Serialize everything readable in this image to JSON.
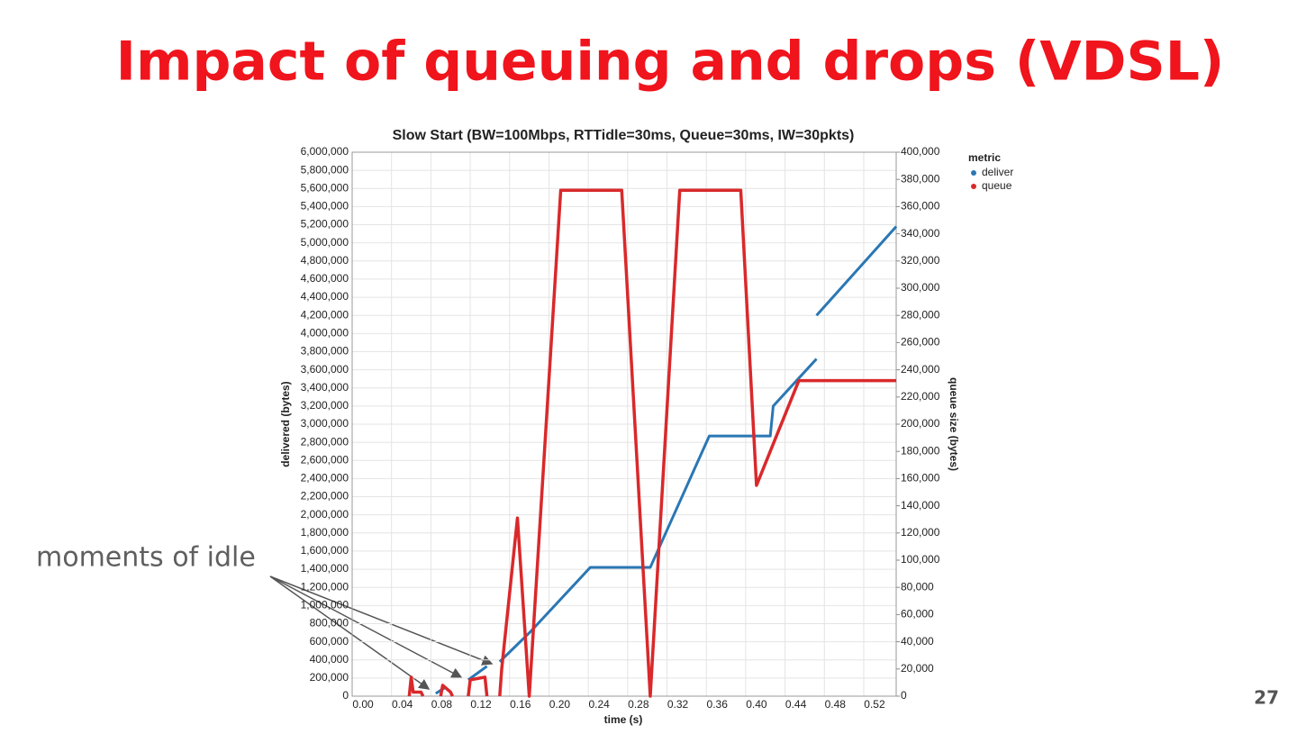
{
  "slide_title": "Impact of queuing and drops (VDSL)",
  "annotation": "moments of idle",
  "page_number": "27",
  "chart_data": {
    "type": "line",
    "title": "Slow Start (BW=100Mbps, RTTidle=30ms, Queue=30ms, IW=30pkts)",
    "x_label": "time (s)",
    "y_label": "delivered (bytes)",
    "y2_label": "queue size (bytes)",
    "legend_title": "metric",
    "legend": "top-right",
    "grid": true,
    "xlim": [
      0,
      0.553
    ],
    "xticks": [
      {
        "value": 0,
        "label": "0.00"
      },
      0.04,
      0.08,
      0.12,
      0.16,
      {
        "value": 0.2,
        "label": "0.20"
      },
      0.24,
      0.28,
      0.32,
      0.36,
      {
        "value": 0.4,
        "label": "0.40"
      },
      0.44,
      0.48,
      0.52
    ],
    "ylim": [
      0,
      6000000
    ],
    "yticks": [
      0,
      {
        "value": 200000,
        "label": "200,000"
      },
      {
        "value": 400000,
        "label": "400,000"
      },
      {
        "value": 600000,
        "label": "600,000"
      },
      {
        "value": 800000,
        "label": "800,000"
      },
      {
        "value": 1000000,
        "label": "1,000,000"
      },
      {
        "value": 1200000,
        "label": "1,200,000"
      },
      {
        "value": 1400000,
        "label": "1,400,000"
      },
      {
        "value": 1600000,
        "label": "1,600,000"
      },
      {
        "value": 1800000,
        "label": "1,800,000"
      },
      {
        "value": 2000000,
        "label": "2,000,000"
      },
      {
        "value": 2200000,
        "label": "2,200,000"
      },
      {
        "value": 2400000,
        "label": "2,400,000"
      },
      {
        "value": 2600000,
        "label": "2,600,000"
      },
      {
        "value": 2800000,
        "label": "2,800,000"
      },
      {
        "value": 3000000,
        "label": "3,000,000"
      },
      {
        "value": 3200000,
        "label": "3,200,000"
      },
      {
        "value": 3400000,
        "label": "3,400,000"
      },
      {
        "value": 3600000,
        "label": "3,600,000"
      },
      {
        "value": 3800000,
        "label": "3,800,000"
      },
      {
        "value": 4000000,
        "label": "4,000,000"
      },
      {
        "value": 4200000,
        "label": "4,200,000"
      },
      {
        "value": 4400000,
        "label": "4,400,000"
      },
      {
        "value": 4600000,
        "label": "4,600,000"
      },
      {
        "value": 4800000,
        "label": "4,800,000"
      },
      {
        "value": 5000000,
        "label": "5,000,000"
      },
      {
        "value": 5200000,
        "label": "5,200,000"
      },
      {
        "value": 5400000,
        "label": "5,400,000"
      },
      {
        "value": 5600000,
        "label": "5,600,000"
      },
      {
        "value": 5800000,
        "label": "5,800,000"
      },
      {
        "value": 6000000,
        "label": "6,000,000"
      }
    ],
    "y2lim": [
      0,
      400000
    ],
    "y2ticks": [
      0,
      {
        "value": 20000,
        "label": "20,000"
      },
      {
        "value": 40000,
        "label": "40,000"
      },
      {
        "value": 60000,
        "label": "60,000"
      },
      {
        "value": 80000,
        "label": "80,000"
      },
      {
        "value": 100000,
        "label": "100,000"
      },
      {
        "value": 120000,
        "label": "120,000"
      },
      {
        "value": 140000,
        "label": "140,000"
      },
      {
        "value": 160000,
        "label": "160,000"
      },
      {
        "value": 180000,
        "label": "180,000"
      },
      {
        "value": 200000,
        "label": "200,000"
      },
      {
        "value": 220000,
        "label": "220,000"
      },
      {
        "value": 240000,
        "label": "240,000"
      },
      {
        "value": 260000,
        "label": "260,000"
      },
      {
        "value": 280000,
        "label": "280,000"
      },
      {
        "value": 300000,
        "label": "300,000"
      },
      {
        "value": 320000,
        "label": "320,000"
      },
      {
        "value": 340000,
        "label": "340,000"
      },
      {
        "value": 360000,
        "label": "360,000"
      },
      {
        "value": 380000,
        "label": "380,000"
      },
      {
        "value": 400000,
        "label": "400,000"
      }
    ],
    "series": [
      {
        "name": "deliver",
        "color": "#2a77b4",
        "axis": "y",
        "x": [
          0.085,
          0.095,
          0.105,
          0.118,
          0.137,
          0.144,
          0.15,
          0.182,
          0.242,
          0.303,
          0.363,
          0.425,
          0.428,
          0.472,
          0.473,
          0.472,
          0.553
        ],
        "values": [
          30000,
          100000,
          null,
          180000,
          330000,
          null,
          380000,
          720000,
          1420000,
          1420000,
          2870000,
          2870000,
          3200000,
          3720000,
          null,
          4200000,
          5180000
        ]
      },
      {
        "name": "queue",
        "color": "#d9292b",
        "axis": "y2",
        "x": [
          0.058,
          0.06,
          0.062,
          0.07,
          0.072,
          0.08,
          0.09,
          0.092,
          0.1,
          0.102,
          0.11,
          0.118,
          0.12,
          0.135,
          0.137,
          0.144,
          0.15,
          0.152,
          0.168,
          0.18,
          0.212,
          0.274,
          0.303,
          0.333,
          0.395,
          0.411,
          0.454,
          0.553
        ],
        "values": [
          0,
          14000,
          3000,
          3000,
          0,
          null,
          0,
          8000,
          3000,
          0,
          null,
          0,
          12000,
          14000,
          0,
          null,
          0,
          20000,
          131000,
          0,
          372000,
          372000,
          0,
          372000,
          372000,
          155000,
          232000,
          232000
        ]
      }
    ]
  }
}
